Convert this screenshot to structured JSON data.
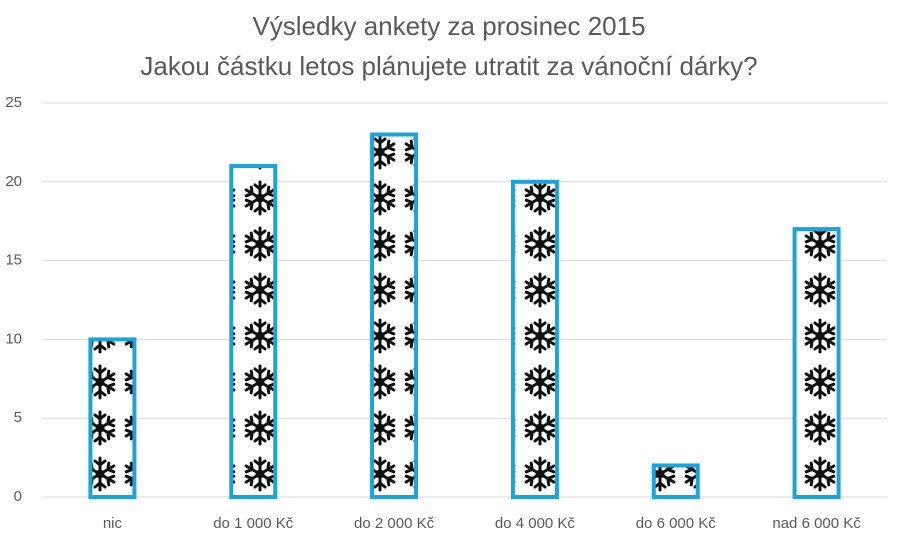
{
  "chart_data": {
    "type": "bar",
    "title": "Výsledky ankety za prosinec 2015",
    "subtitle": "Jakou částku letos plánujete utratit za vánoční dárky?",
    "categories": [
      "nic",
      "do 1 000 Kč",
      "do 2 000 Kč",
      "do 4 000 Kč",
      "do 6 000 Kč",
      "nad 6 000 Kč"
    ],
    "values": [
      10,
      21,
      23,
      20,
      2,
      17
    ],
    "color": "#1aa3dc",
    "ylim": [
      0,
      25
    ],
    "yticks": [
      0,
      5,
      10,
      15,
      20,
      25
    ],
    "grid": true
  }
}
